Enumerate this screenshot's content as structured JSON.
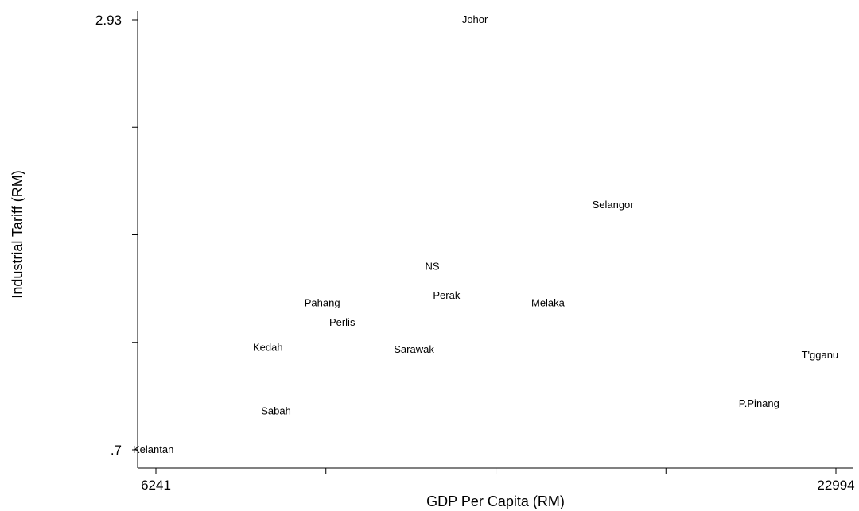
{
  "chart_data": {
    "type": "scatter",
    "marker": "label",
    "xlabel": "GDP Per Capita (RM)",
    "ylabel": "Industrial Tariff (RM)",
    "xlim": [
      6241,
      22994
    ],
    "ylim": [
      0.7,
      2.93
    ],
    "x_ticks": [
      6241,
      10429,
      14618,
      18806,
      22994
    ],
    "x_tick_labels": [
      "6241",
      "",
      "",
      "",
      "22994"
    ],
    "y_ticks": [
      0.7,
      1.2575,
      1.815,
      2.3725,
      2.93
    ],
    "y_tick_labels": [
      ".7",
      "",
      "",
      "",
      "2.93"
    ],
    "grid": false,
    "points": [
      {
        "label": "Johor",
        "x": 14100,
        "y": 2.93
      },
      {
        "label": "Selangor",
        "x": 17500,
        "y": 1.97
      },
      {
        "label": "NS",
        "x": 13050,
        "y": 1.65
      },
      {
        "label": "Perak",
        "x": 13400,
        "y": 1.5
      },
      {
        "label": "Melaka",
        "x": 15900,
        "y": 1.46
      },
      {
        "label": "Pahang",
        "x": 10340,
        "y": 1.46
      },
      {
        "label": "Perlis",
        "x": 10830,
        "y": 1.36
      },
      {
        "label": "Kedah",
        "x": 9000,
        "y": 1.23
      },
      {
        "label": "Sarawak",
        "x": 12600,
        "y": 1.22
      },
      {
        "label": "T'gganu",
        "x": 22600,
        "y": 1.19
      },
      {
        "label": "P.Pinang",
        "x": 21100,
        "y": 0.94
      },
      {
        "label": "Sabah",
        "x": 9200,
        "y": 0.9
      },
      {
        "label": "Kelantan",
        "x": 6241,
        "y": 0.7
      }
    ]
  }
}
